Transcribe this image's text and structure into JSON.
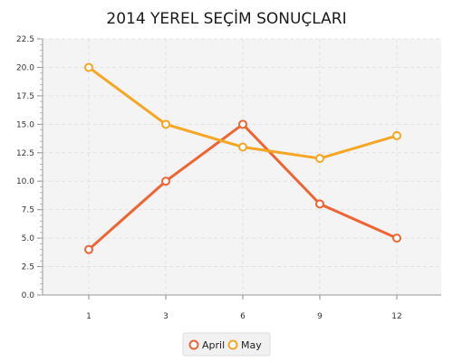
{
  "chart_data": {
    "type": "line",
    "title": "2014 YEREL SEÇİM SONUÇLARI",
    "xlabel": "",
    "ylabel": "",
    "x": [
      1,
      3,
      6,
      9,
      12
    ],
    "x_tick_labels": [
      "1",
      "3",
      "6",
      "9",
      "12"
    ],
    "ylim": [
      0,
      22.5
    ],
    "y_tick_labels": [
      "0.0",
      "2.5",
      "5.0",
      "7.5",
      "10.0",
      "12.5",
      "15.0",
      "17.5",
      "20.0",
      "22.5"
    ],
    "grid": true,
    "legend_position": "bottom",
    "series": [
      {
        "name": "April",
        "values": [
          4,
          10,
          15,
          8,
          5
        ],
        "color": "#ee6533"
      },
      {
        "name": "May",
        "values": [
          20,
          15,
          13,
          12,
          14
        ],
        "color": "#f5a623"
      }
    ]
  }
}
